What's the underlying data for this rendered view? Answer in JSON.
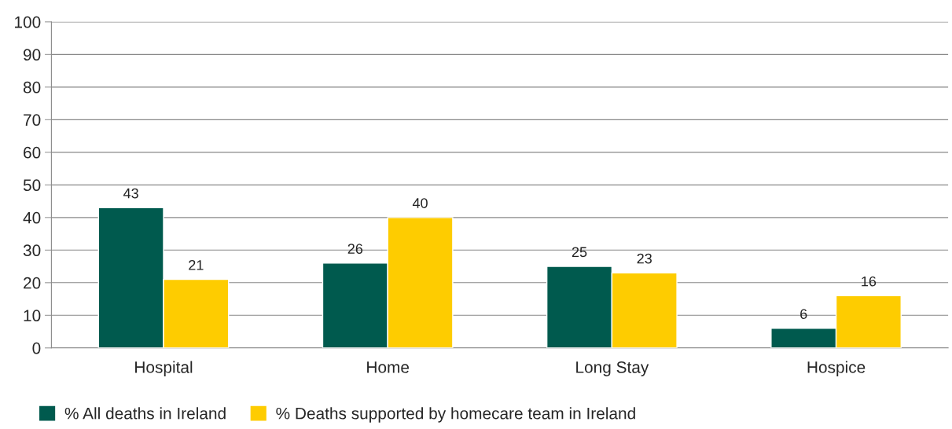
{
  "chart_data": {
    "type": "bar",
    "categories": [
      "Hospital",
      "Home",
      "Long Stay",
      "Hospice"
    ],
    "series": [
      {
        "name": "% All deaths in Ireland",
        "color": "#005a4e",
        "values": [
          43,
          26,
          25,
          6
        ]
      },
      {
        "name": "% Deaths supported by homecare team in Ireland",
        "color": "#fecc00",
        "values": [
          21,
          40,
          23,
          16
        ]
      }
    ],
    "ylim": [
      0,
      100
    ],
    "yticks": [
      0,
      10,
      20,
      30,
      40,
      50,
      60,
      70,
      80,
      90,
      100
    ],
    "grid": "y",
    "legend": "bottom left",
    "data_labels": true
  }
}
